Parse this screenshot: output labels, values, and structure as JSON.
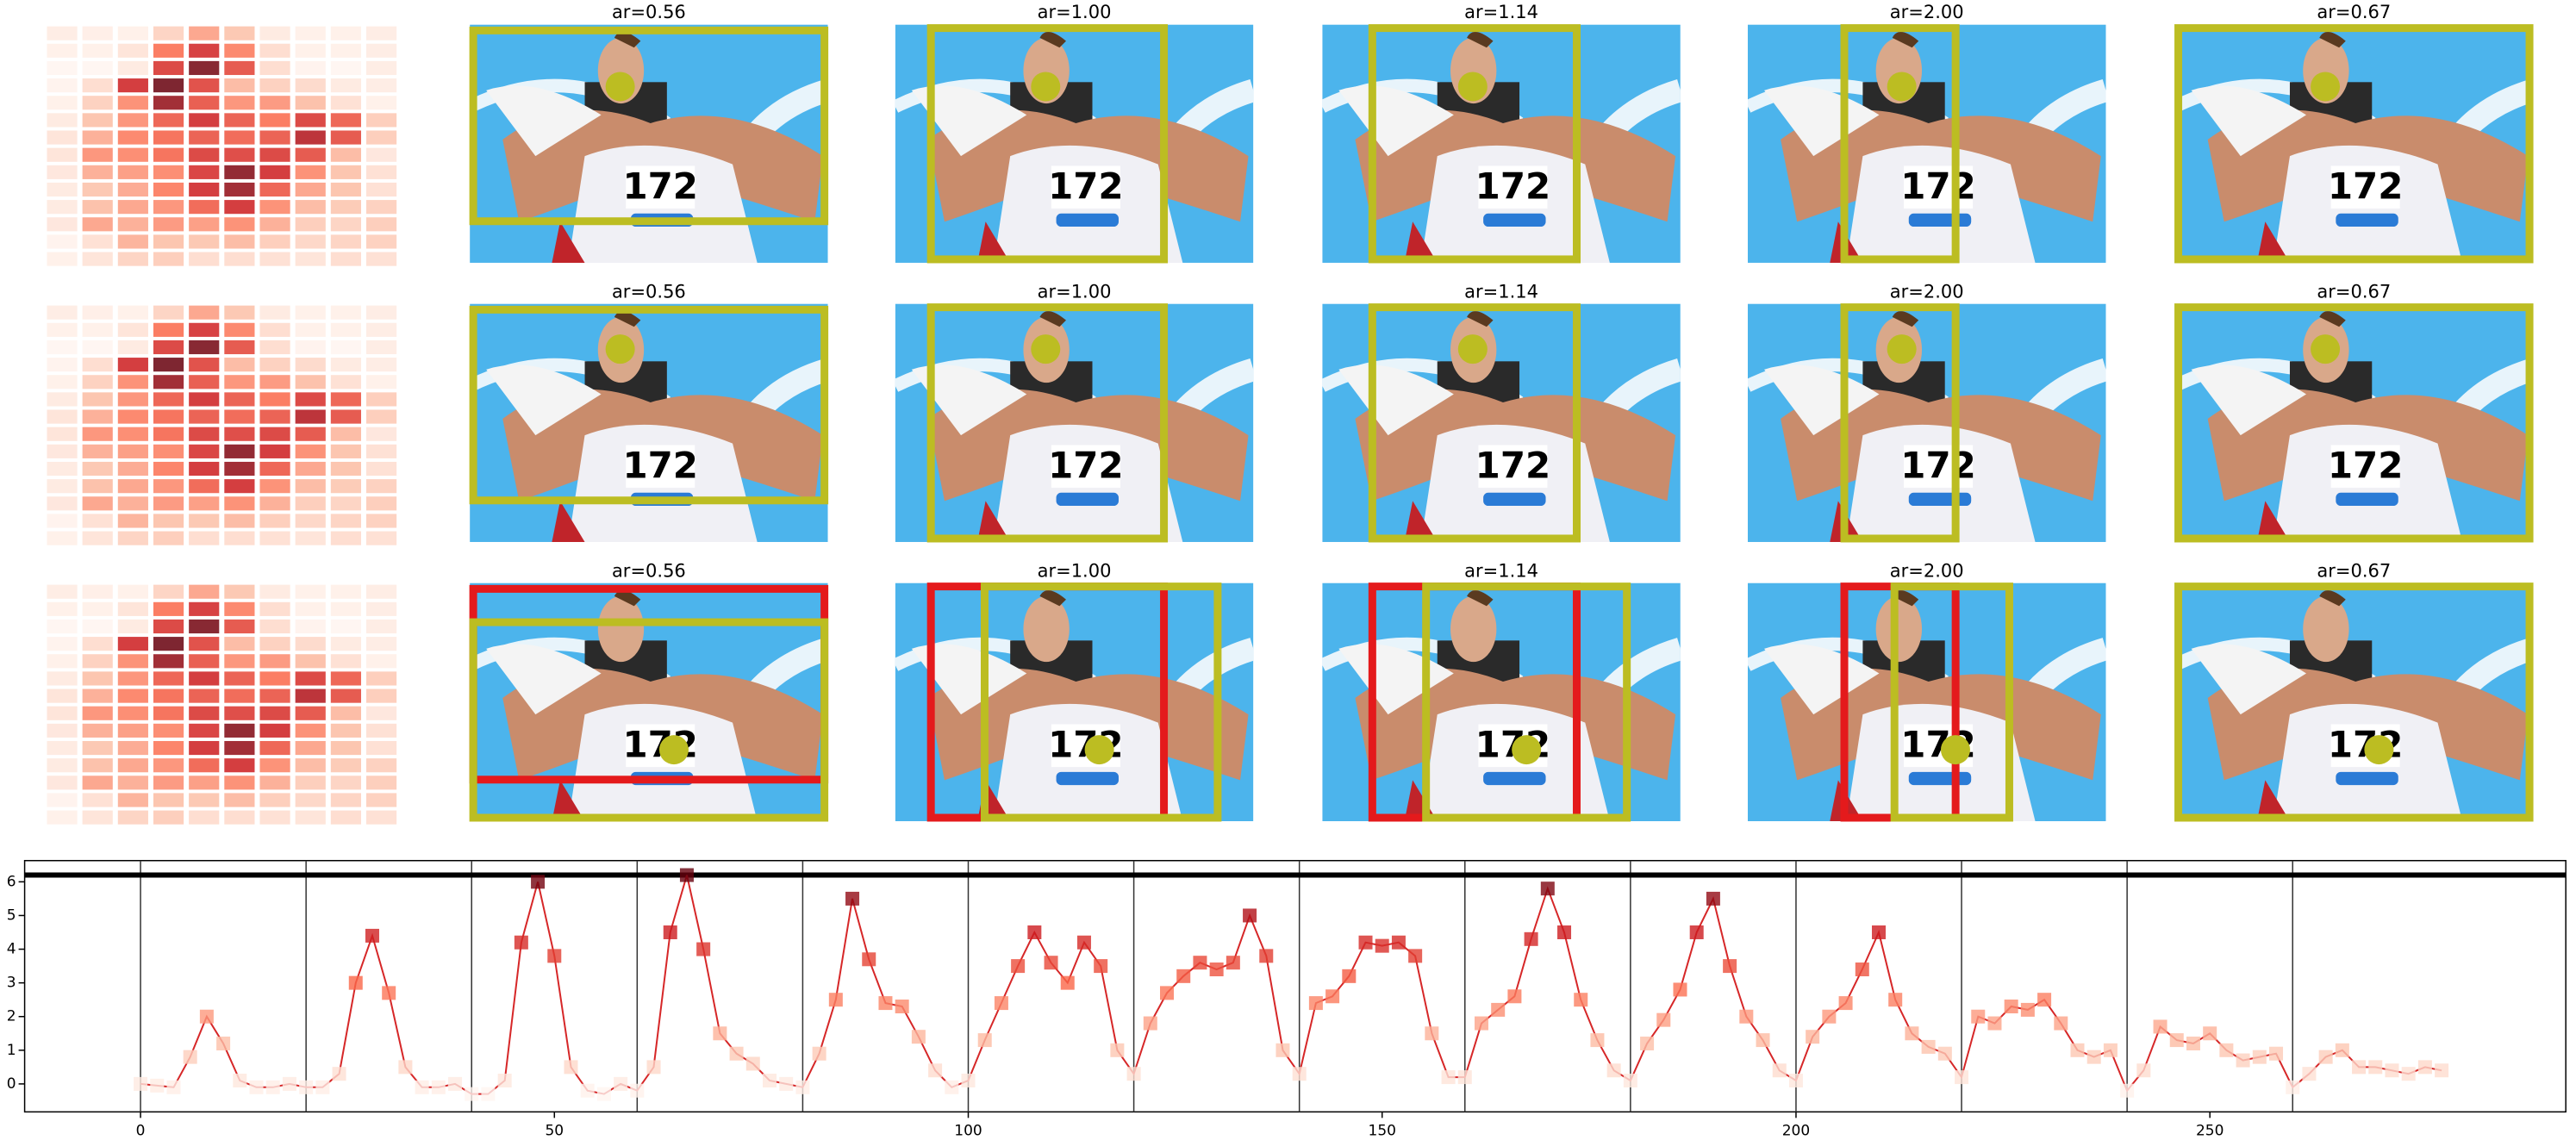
{
  "chart_data": [
    {
      "type": "image_grid",
      "column_titles": [
        "ar=0.56",
        "ar=1.00",
        "ar=1.14",
        "ar=2.00",
        "ar=0.67"
      ]
    },
    {
      "type": "line",
      "x": [
        0,
        2,
        4,
        6,
        8,
        10,
        12,
        14,
        16,
        18,
        20,
        22,
        24,
        26,
        28,
        30,
        32,
        34,
        36,
        38,
        40,
        42,
        44,
        46,
        48,
        50,
        52,
        54,
        56,
        58,
        60,
        62,
        64,
        66,
        68,
        70,
        72,
        74,
        76,
        78,
        80,
        82,
        84,
        86,
        88,
        90,
        92,
        94,
        96,
        98,
        100,
        102,
        104,
        106,
        108,
        110,
        112,
        114,
        116,
        118,
        120,
        122,
        124,
        126,
        128,
        130,
        132,
        134,
        136,
        138,
        140,
        142,
        144,
        146,
        148,
        150,
        152,
        154,
        156,
        158,
        160,
        162,
        164,
        166,
        168,
        170,
        172,
        174,
        176,
        178,
        180,
        182,
        184,
        186,
        188,
        190,
        192,
        194,
        196,
        198,
        200,
        202,
        204,
        206,
        208,
        210,
        212,
        214,
        216,
        218,
        220,
        222,
        224,
        226,
        228,
        230,
        232,
        234,
        236,
        238,
        240,
        242,
        244,
        246,
        248,
        250,
        252,
        254,
        256,
        258,
        260,
        262,
        264,
        266,
        268,
        270,
        272,
        274,
        276,
        278
      ],
      "values": [
        0,
        -0.05,
        -0.1,
        0.8,
        2.0,
        1.2,
        0.1,
        -0.1,
        -0.1,
        0,
        -0.1,
        -0.1,
        0.3,
        3.0,
        4.4,
        2.7,
        0.5,
        -0.1,
        -0.1,
        0,
        -0.3,
        -0.3,
        0.1,
        4.2,
        6.0,
        3.8,
        0.5,
        -0.2,
        -0.3,
        0,
        -0.2,
        0.5,
        4.5,
        6.2,
        4.0,
        1.5,
        0.9,
        0.6,
        0.1,
        0,
        -0.1,
        0.9,
        2.5,
        5.5,
        3.7,
        2.4,
        2.3,
        1.4,
        0.4,
        -0.1,
        0.1,
        1.3,
        2.4,
        3.5,
        4.5,
        3.6,
        3.0,
        4.2,
        3.5,
        1.0,
        0.3,
        1.8,
        2.7,
        3.2,
        3.6,
        3.4,
        3.6,
        5.0,
        3.8,
        1.0,
        0.3,
        2.4,
        2.6,
        3.2,
        4.2,
        4.1,
        4.2,
        3.8,
        1.5,
        0.2,
        0.2,
        1.8,
        2.2,
        2.6,
        4.3,
        5.8,
        4.5,
        2.5,
        1.3,
        0.4,
        0.1,
        1.2,
        1.9,
        2.8,
        4.5,
        5.5,
        3.5,
        2.0,
        1.3,
        0.4,
        0.1,
        1.4,
        2.0,
        2.4,
        3.4,
        4.5,
        2.5,
        1.5,
        1.1,
        0.9,
        0.2,
        2.0,
        1.8,
        2.3,
        2.2,
        2.5,
        1.8,
        1.0,
        0.8,
        1.0,
        -0.2,
        0.4,
        1.7,
        1.3,
        1.2,
        1.5,
        1.0,
        0.7,
        0.8,
        0.9,
        -0.1,
        0.3,
        0.8,
        1.0,
        0.5,
        0.5,
        0.4,
        0.3,
        0.5,
        0.4
      ],
      "line_color": "#d62728",
      "colormap": [
        "#fff5f0",
        "#fcbba1",
        "#fb6a4a",
        "#cb181d",
        "#67000d"
      ],
      "xlim": [
        -14,
        293
      ],
      "ylim": [
        -0.83,
        6.63
      ],
      "xticks": [
        0,
        50,
        100,
        150,
        200,
        250
      ],
      "yticks": [
        0,
        1,
        2,
        3,
        4,
        5,
        6
      ],
      "vlines": [
        0,
        20,
        40,
        60,
        80,
        100,
        120,
        140,
        160,
        180,
        200,
        220,
        240,
        260
      ],
      "hline": 6.2
    }
  ]
}
